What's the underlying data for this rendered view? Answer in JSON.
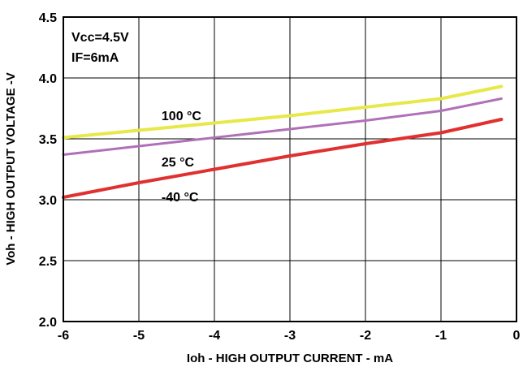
{
  "chart_data": {
    "type": "line",
    "xlabel": "Ioh - HIGH OUTPUT CURRENT - mA",
    "ylabel": "Voh - HIGH OUTPUT VOLTAGE -V",
    "xlim": [
      -6,
      0
    ],
    "ylim": [
      2.0,
      4.5
    ],
    "x_ticks": [
      -6,
      -5,
      -4,
      -3,
      -2,
      -1,
      0
    ],
    "y_ticks": [
      2.0,
      2.5,
      3.0,
      3.5,
      4.0,
      4.5
    ],
    "x_tick_labels": [
      "-6",
      "-5",
      "-4",
      "-3",
      "-2",
      "-1",
      "0"
    ],
    "y_tick_labels": [
      "2.0",
      "2.5",
      "3.0",
      "3.5",
      "4.0",
      "4.5"
    ],
    "grid": true,
    "annotations": [
      "Vcc=4.5V",
      "IF=6mA"
    ],
    "series": [
      {
        "name": "100 °C",
        "color": "#e8e84a",
        "x": [
          -6,
          -5,
          -4,
          -3,
          -2,
          -1,
          -0.2
        ],
        "values": [
          3.51,
          3.57,
          3.63,
          3.69,
          3.76,
          3.83,
          3.93
        ]
      },
      {
        "name": "25 °C",
        "color": "#b070b8",
        "x": [
          -6,
          -5,
          -4,
          -3,
          -2,
          -1,
          -0.2
        ],
        "values": [
          3.37,
          3.44,
          3.51,
          3.58,
          3.65,
          3.73,
          3.83
        ]
      },
      {
        "name": "-40 °C",
        "color": "#e03030",
        "x": [
          -6,
          -5,
          -4,
          -3,
          -2,
          -1,
          -0.2
        ],
        "values": [
          3.02,
          3.14,
          3.25,
          3.36,
          3.46,
          3.55,
          3.66
        ]
      }
    ]
  }
}
